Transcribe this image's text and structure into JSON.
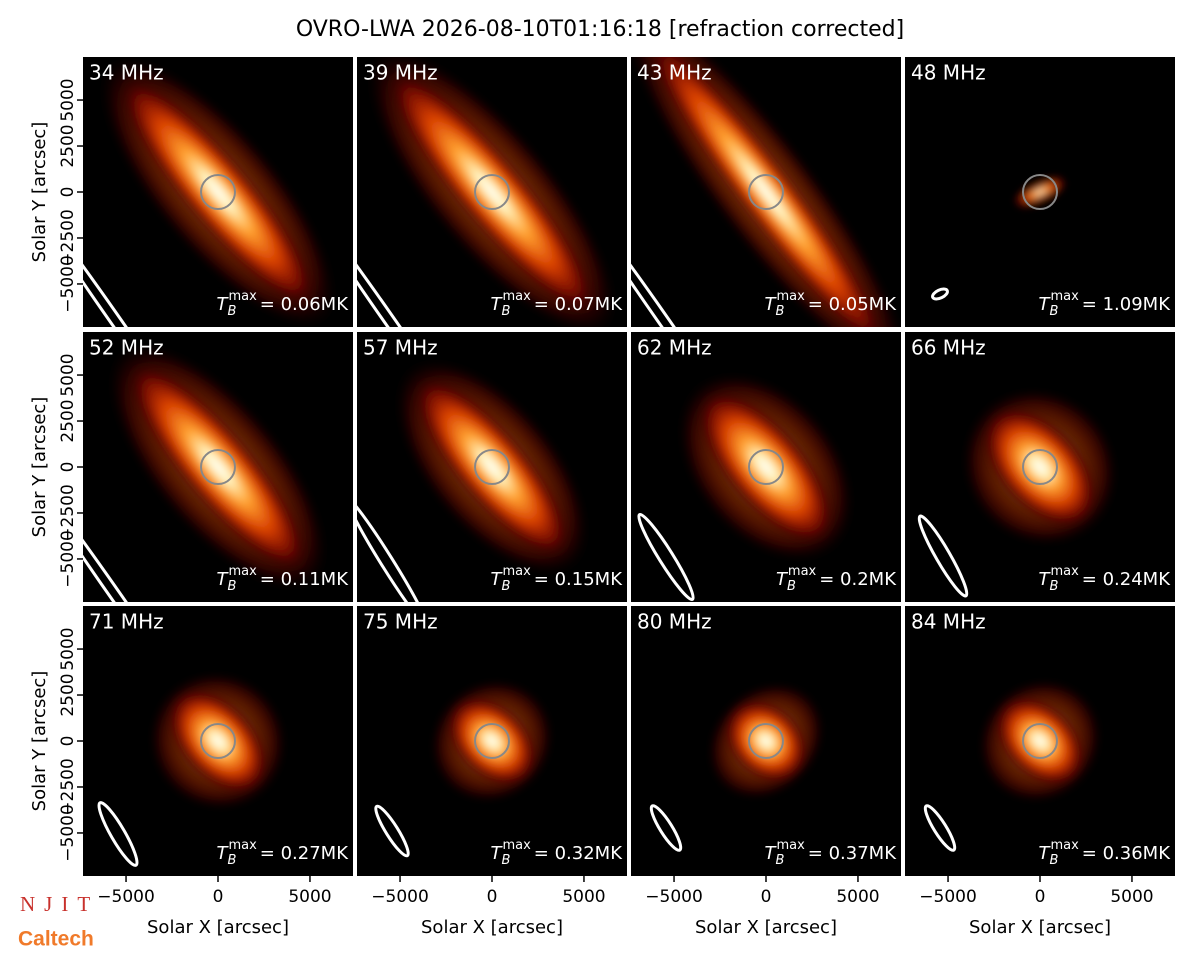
{
  "title": "OVRO-LWA 2026-08-10T01:16:18 [refraction corrected]",
  "logos": {
    "njit": "NJIT",
    "caltech": "Caltech"
  },
  "tb_symbol": {
    "base": "T",
    "sub": "B",
    "sup": "max"
  },
  "chart_data": [
    {
      "type": "image",
      "title": "34 MHz",
      "annotation": "= 0.06MK",
      "xlim": [
        -7340,
        7340
      ],
      "ylim": [
        -7340,
        7340
      ],
      "ylabel": "Solar Y [arcsec]",
      "yticks": [
        {
          "value": -5000,
          "label": "−5000"
        },
        {
          "value": -2500,
          "label": "−2500"
        },
        0,
        2500,
        5000
      ]
    },
    {
      "type": "image",
      "title": "39 MHz",
      "annotation": "= 0.07MK",
      "xlim": [
        -7340,
        7340
      ],
      "ylim": [
        -7340,
        7340
      ]
    },
    {
      "type": "image",
      "title": "43 MHz",
      "annotation": "= 0.05MK",
      "xlim": [
        -7340,
        7340
      ],
      "ylim": [
        -7340,
        7340
      ]
    },
    {
      "type": "image",
      "title": "48 MHz",
      "annotation": "= 1.09MK",
      "xlim": [
        -7340,
        7340
      ],
      "ylim": [
        -7340,
        7340
      ]
    },
    {
      "type": "image",
      "title": "52 MHz",
      "annotation": "= 0.11MK",
      "xlim": [
        -7340,
        7340
      ],
      "ylim": [
        -7340,
        7340
      ],
      "ylabel": "Solar Y [arcsec]",
      "yticks": [
        {
          "value": -5000,
          "label": "−5000"
        },
        {
          "value": -2500,
          "label": "−2500"
        },
        0,
        2500,
        5000
      ]
    },
    {
      "type": "image",
      "title": "57 MHz",
      "annotation": "= 0.15MK",
      "xlim": [
        -7340,
        7340
      ],
      "ylim": [
        -7340,
        7340
      ]
    },
    {
      "type": "image",
      "title": "62 MHz",
      "annotation": "= 0.2MK",
      "xlim": [
        -7340,
        7340
      ],
      "ylim": [
        -7340,
        7340
      ]
    },
    {
      "type": "image",
      "title": "66 MHz",
      "annotation": "= 0.24MK",
      "xlim": [
        -7340,
        7340
      ],
      "ylim": [
        -7340,
        7340
      ]
    },
    {
      "type": "image",
      "title": "71 MHz",
      "annotation": "= 0.27MK",
      "xlim": [
        -7340,
        7340
      ],
      "ylim": [
        -7340,
        7340
      ],
      "ylabel": "Solar Y [arcsec]",
      "yticks": [
        {
          "value": -5000,
          "label": "−5000"
        },
        {
          "value": -2500,
          "label": "−2500"
        },
        0,
        2500,
        5000
      ],
      "xlabel": "Solar X [arcsec]",
      "xticks": [
        {
          "value": -5000,
          "label": "−5000"
        },
        0,
        5000
      ]
    },
    {
      "type": "image",
      "title": "75 MHz",
      "annotation": "= 0.32MK",
      "xlim": [
        -7340,
        7340
      ],
      "ylim": [
        -7340,
        7340
      ],
      "xlabel": "Solar X [arcsec]",
      "xticks": [
        {
          "value": -5000,
          "label": "−5000"
        },
        0,
        5000
      ]
    },
    {
      "type": "image",
      "title": "80 MHz",
      "annotation": "= 0.37MK",
      "xlim": [
        -7340,
        7340
      ],
      "ylim": [
        -7340,
        7340
      ],
      "xlabel": "Solar X [arcsec]",
      "xticks": [
        {
          "value": -5000,
          "label": "−5000"
        },
        0,
        5000
      ]
    },
    {
      "type": "image",
      "title": "84 MHz",
      "annotation": "= 0.36MK",
      "xlim": [
        -7340,
        7340
      ],
      "ylim": [
        -7340,
        7340
      ],
      "xlabel": "Solar X [arcsec]",
      "xticks": [
        {
          "value": -5000,
          "label": "−5000"
        },
        0,
        5000
      ]
    }
  ]
}
